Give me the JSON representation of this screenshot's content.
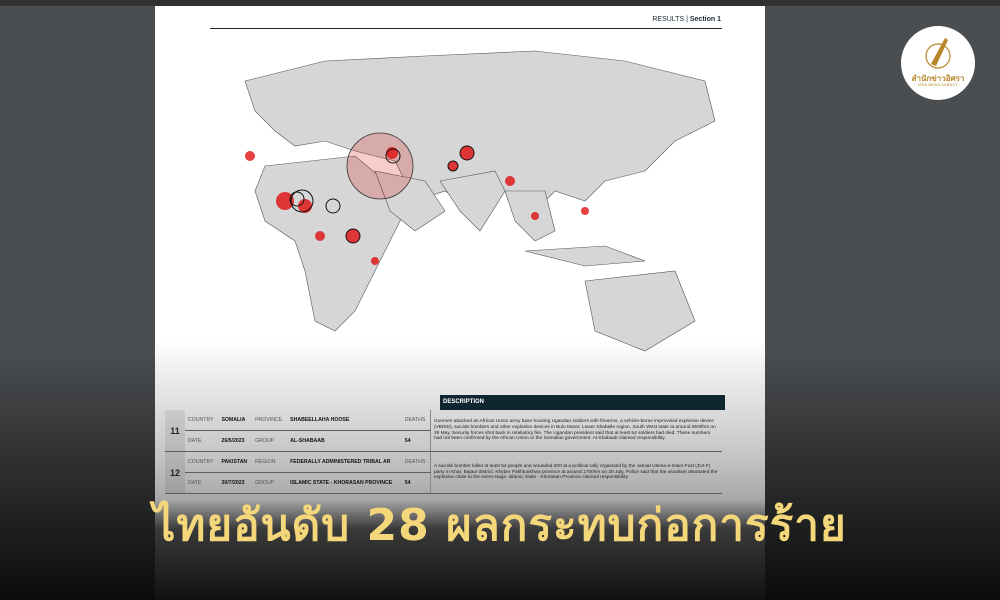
{
  "header": {
    "section": "RESULTS",
    "divider": "|",
    "section_num": "Section 1"
  },
  "description_header": "DESCRIPTION",
  "rows": [
    {
      "num": "11",
      "country_label": "COUNTRY",
      "country": "SOMALIA",
      "region_label": "PROVINCE",
      "region": "SHABEELLAHA HOOSE",
      "deaths_label": "DEATHS",
      "date_label": "DATE",
      "date": "26/5/2023",
      "group_label": "GROUP",
      "group": "AL-SHABAAB",
      "deaths": "54",
      "description": "Gunmen attacked an African Union army base housing Ugandan soldiers with firearms, a vehicle-borne improvised explosive device (VBIED), suicide bombers and other explosive devices in Bulo Marer, Lower Shabelle region, South West state at around 0500hrs on 26 May. Security forces shot back in retaliatory fire. The Ugandan president said that at least 54 soldiers had died. These numbers had not been confirmed by the African Union or the Somalian government. Al-Shabaab claimed responsibility."
    },
    {
      "num": "12",
      "country_label": "COUNTRY",
      "country": "PAKISTAN",
      "region_label": "REGION",
      "region": "FEDERALLY ADMINISTERED TRIBAL AR",
      "deaths_label": "DEATHS",
      "date_label": "DATE",
      "date": "30/7/2023",
      "group_label": "GROUP",
      "group": "ISLAMIC STATE - KHORASAN PROVINCE",
      "deaths": "54",
      "description": "A suicide bomber killed at least 54 people and wounded 200 at a political rally organised by the Jamiat Ulema-e-Islam-Fazl (JUI-F) party in Khar, Bajaur district, Khyber Pakhtunkhwa province at around 1700hrs on 30 July. Police said that the assailant detonated the explosive close to the event stage. Islamic State - Khorasan Province claimed responsibility."
    }
  ],
  "headline": "ไทยอันดับ 28 ผลกระทบก่อการร้าย",
  "logo": {
    "thai": "สำนักข่าวอิศรา",
    "english": "ISRA NEWS AGENCY"
  },
  "colors": {
    "headline": "#f4d77a",
    "marker": "#e00000",
    "land": "#d6d6d6",
    "logo_gold": "#b8862a"
  }
}
